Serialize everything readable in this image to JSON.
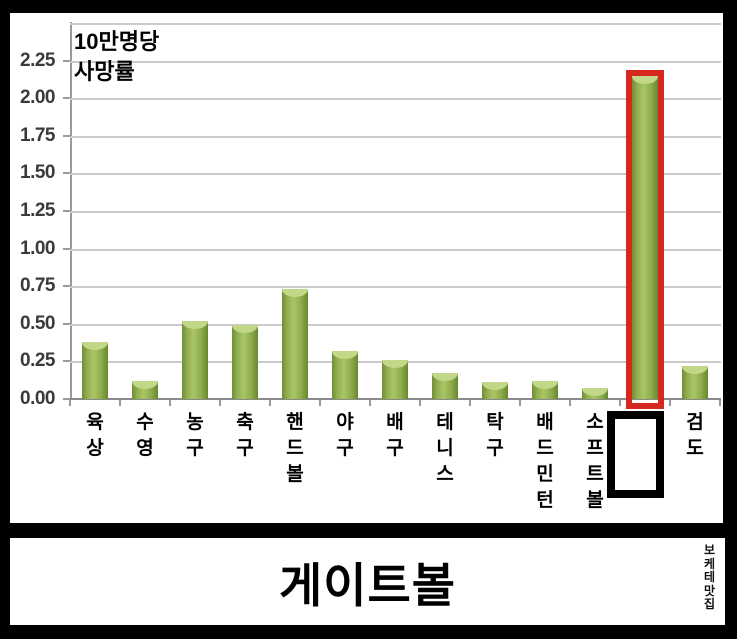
{
  "chart_data": {
    "type": "bar",
    "title": "",
    "ylabel": "10만명당 사망률",
    "ylabel_lines": [
      "10만명당",
      "사망률"
    ],
    "categories": [
      "육상",
      "수영",
      "농구",
      "축구",
      "핸드볼",
      "야구",
      "배구",
      "테니스",
      "탁구",
      "배드민턴",
      "소프트볼",
      "",
      "검도"
    ],
    "values": [
      0.38,
      0.12,
      0.52,
      0.49,
      0.73,
      0.32,
      0.26,
      0.17,
      0.11,
      0.12,
      0.07,
      2.15,
      0.22
    ],
    "ylim": [
      0,
      2.5
    ],
    "ytick_step": 0.25,
    "ytick_labels": [
      "0.00",
      "0.25",
      "0.50",
      "0.75",
      "1.00",
      "1.25",
      "1.50",
      "1.75",
      "2.00",
      "2.25"
    ],
    "grid": true,
    "legend": false,
    "highlight": {
      "index": 11,
      "outline_color": "#d6281f",
      "label_hidden_by_black_box": true,
      "revealed_answer": "게이트볼"
    }
  },
  "answer_panel": {
    "text": "게이트볼"
  },
  "watermark": {
    "text": "보케테맛집"
  },
  "colors": {
    "background": "#000000",
    "panel": "#ffffff",
    "bar_main": "#8fae4c",
    "bar_edge_dark": "#6f8e38",
    "bar_center_light": "#aac566",
    "bar_cap_light": "#c3d789",
    "highlight_red": "#d6281f",
    "gridline": "#cbcbcb",
    "axis": "#9a9a9a",
    "y_tick_label": "#3a3a3a",
    "category_label": "#000000"
  }
}
